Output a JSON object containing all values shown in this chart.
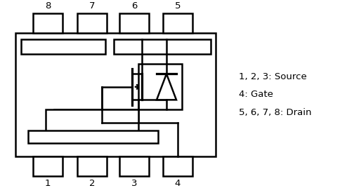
{
  "bg_color": "#ffffff",
  "lc": "#000000",
  "lw": 1.8,
  "figsize": [
    4.84,
    2.68
  ],
  "dpi": 100,
  "legend_lines": [
    "1, 2, 3: Source",
    "4: Gate",
    "5, 6, 7, 8: Drain"
  ],
  "legend_fontsize": 9.5,
  "pin_label_fontsize": 9.5
}
